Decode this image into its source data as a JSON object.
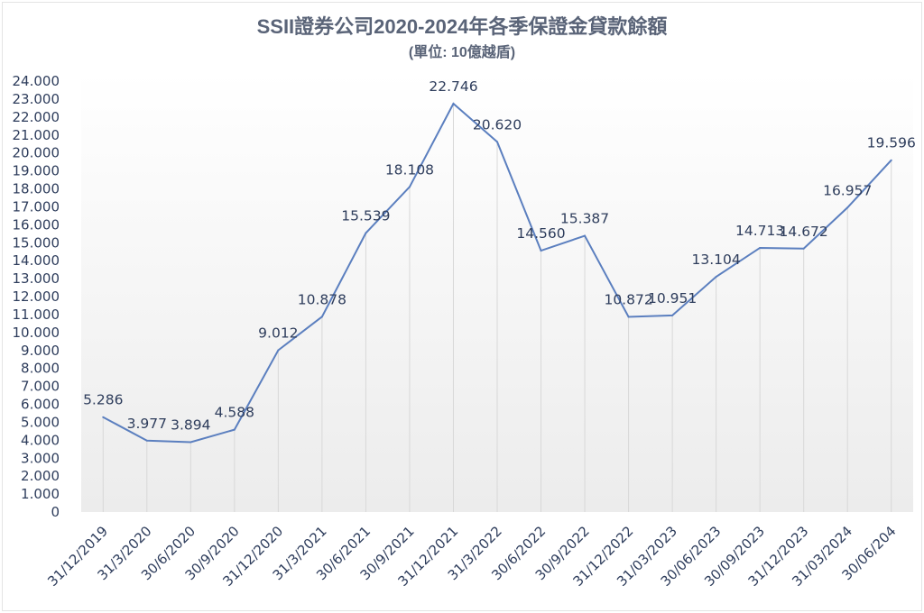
{
  "chart_data": {
    "type": "line",
    "title": "SSII證券公司2020-2024年各季保證金貸款餘額",
    "subtitle": "(單位: 10億越盾)",
    "categories": [
      "31/12/2019",
      "31/3/2020",
      "30/6/2020",
      "30/9/2020",
      "31/12/2020",
      "31/3/2021",
      "30/6/2021",
      "30/9/2021",
      "31/12/2021",
      "31/3/2022",
      "30/6/2022",
      "30/9/2022",
      "31/12/2022",
      "31/03/2023",
      "30/06/2023",
      "30/09/2023",
      "31/12/2023",
      "31/03/2024",
      "30/06/204"
    ],
    "values": [
      5.286,
      3.977,
      3.894,
      4.588,
      9.012,
      10.878,
      15.539,
      18.108,
      22.746,
      20.62,
      14.56,
      15.387,
      10.872,
      10.951,
      13.104,
      14.713,
      14.672,
      16.957,
      19.596
    ],
    "data_labels": [
      "5.286",
      "3.977",
      "3.894",
      "4.588",
      "9.012",
      "10.878",
      "15.539",
      "18.108",
      "22.746",
      "20.620",
      "14.560",
      "15.387",
      "10.872",
      "10.951",
      "13.104",
      "14.713",
      "14.672",
      "16.957",
      "19.596"
    ],
    "y_ticks": [
      "0",
      "1.000",
      "2.000",
      "3.000",
      "4.000",
      "5.000",
      "6.000",
      "7.000",
      "8.000",
      "9.000",
      "10.000",
      "11.000",
      "12.000",
      "13.000",
      "14.000",
      "15.000",
      "16.000",
      "17.000",
      "18.000",
      "19.000",
      "20.000",
      "21.000",
      "22.000",
      "23.000",
      "24.000"
    ],
    "ylim": [
      0,
      24
    ],
    "line_color": "#5b7fbf",
    "grid": "vertical drop lines",
    "legend": "none"
  }
}
